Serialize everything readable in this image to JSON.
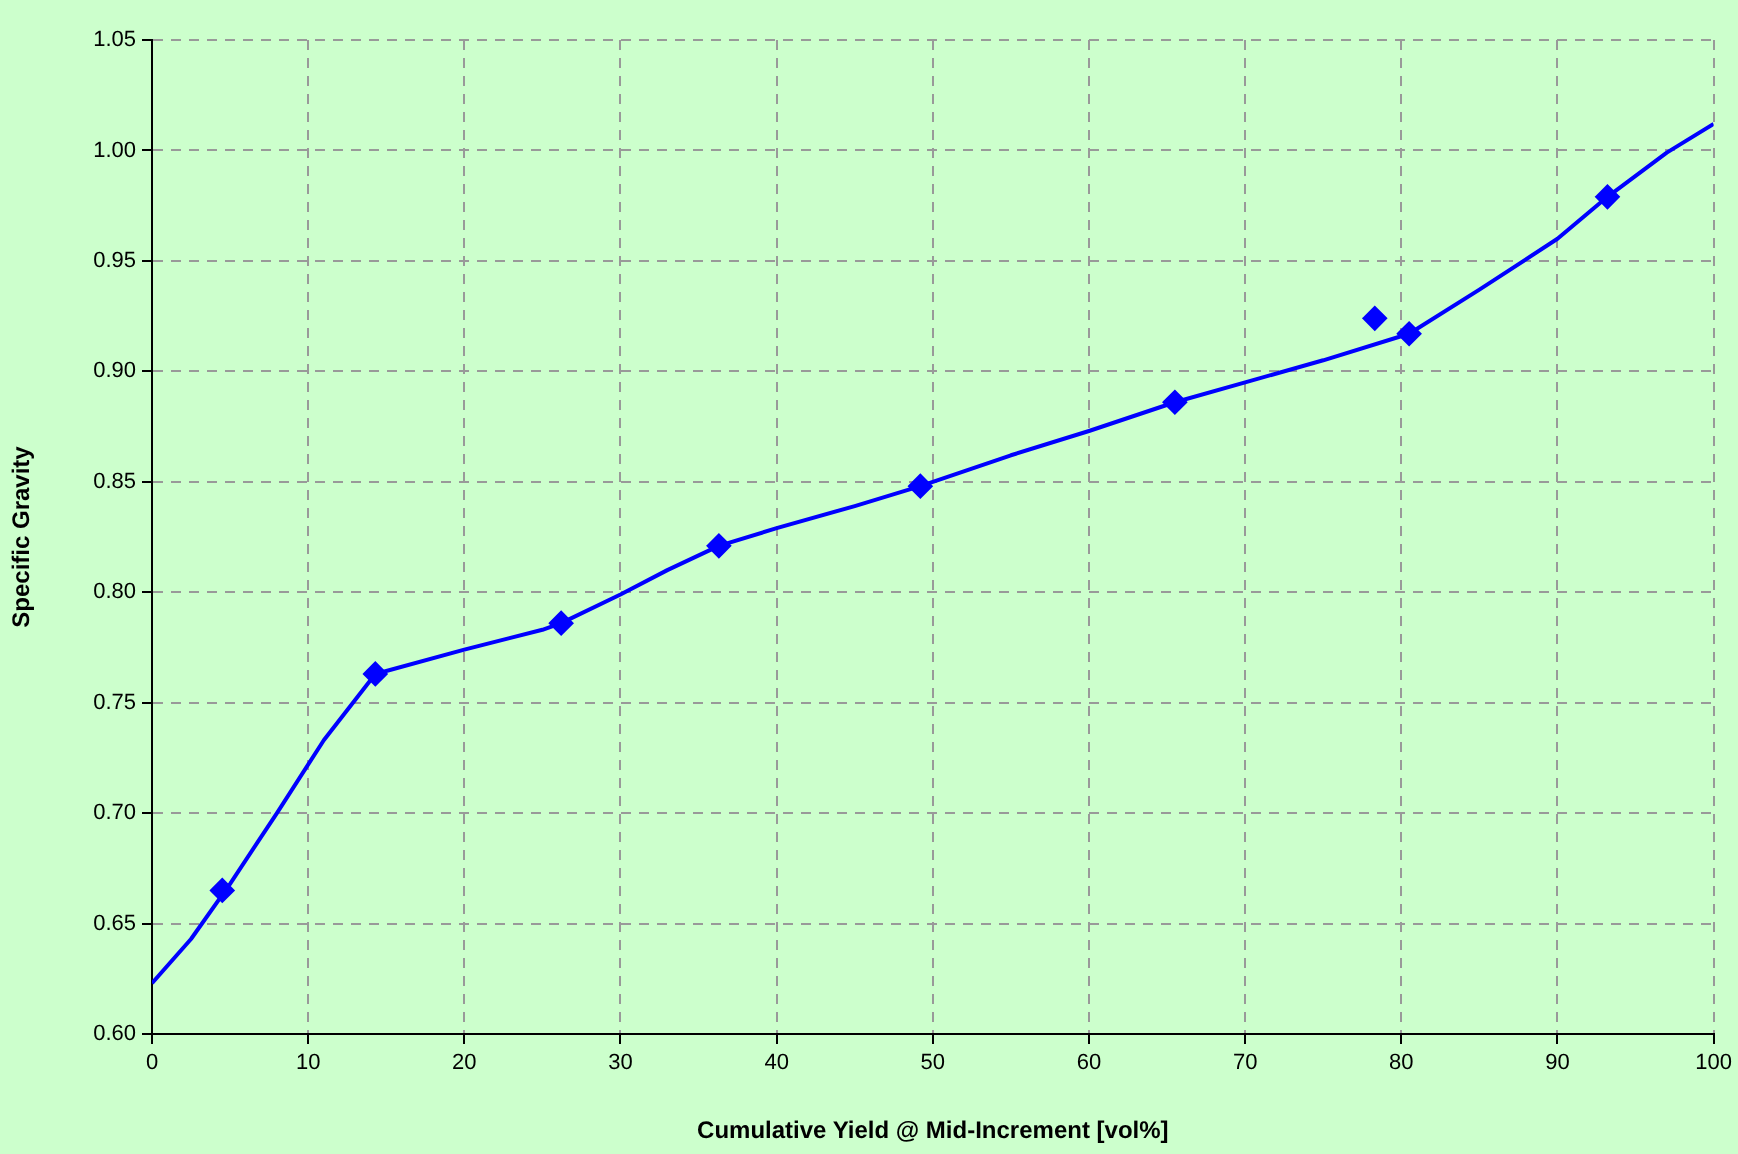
{
  "chart_data": {
    "type": "line",
    "xlabel": "Cumulative Yield @ Mid-Increment [vol%]",
    "ylabel": "Specific Gravity",
    "xlim": [
      0,
      100
    ],
    "xticks": [
      0,
      10,
      20,
      30,
      40,
      50,
      60,
      70,
      80,
      90,
      100
    ],
    "ylim": [
      0.6,
      1.05
    ],
    "yticks": [
      {
        "value": 0.6,
        "label": "0.60"
      },
      {
        "value": 0.65,
        "label": "0.65"
      },
      {
        "value": 0.7,
        "label": "0.70"
      },
      {
        "value": 0.75,
        "label": "0.75"
      },
      {
        "value": 0.8,
        "label": "0.80"
      },
      {
        "value": 0.85,
        "label": "0.85"
      },
      {
        "value": 0.9,
        "label": "0.90"
      },
      {
        "value": 0.95,
        "label": "0.95"
      },
      {
        "value": 1.0,
        "label": "1.00"
      },
      {
        "value": 1.05,
        "label": "1.05"
      }
    ],
    "grid": true,
    "legend": false,
    "line_style": "solid",
    "series": [
      {
        "type": "line",
        "marker": "none",
        "color": "#0000ff",
        "x": [
          0,
          2.5,
          5,
          8,
          11,
          14.3,
          20,
          25,
          26.2,
          30,
          33,
          36.3,
          40,
          45,
          49.2,
          55,
          60,
          65.5,
          70,
          75,
          80.5,
          85,
          90,
          93.2,
          97,
          100
        ],
        "values": [
          0.623,
          0.643,
          0.668,
          0.7,
          0.733,
          0.763,
          0.774,
          0.783,
          0.786,
          0.799,
          0.81,
          0.821,
          0.829,
          0.839,
          0.848,
          0.862,
          0.873,
          0.886,
          0.895,
          0.905,
          0.917,
          0.937,
          0.96,
          0.979,
          0.999,
          1.012
        ]
      },
      {
        "type": "scatter",
        "marker": "diamond",
        "color": "#0000ff",
        "x": [
          4.5,
          14.3,
          26.2,
          36.3,
          49.2,
          65.5,
          78.3,
          80.5,
          93.2
        ],
        "values": [
          0.665,
          0.763,
          0.786,
          0.821,
          0.848,
          0.886,
          0.924,
          0.917,
          0.979
        ]
      }
    ]
  }
}
